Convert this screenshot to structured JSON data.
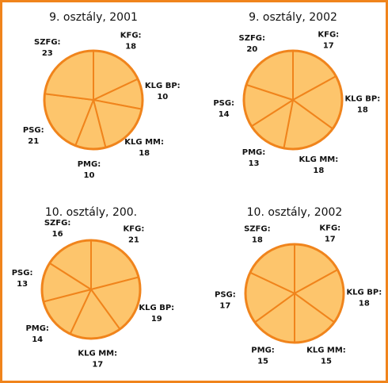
{
  "chart_data": [
    {
      "type": "pie",
      "title": "9. osztály, 2001",
      "categories": [
        "KFG:",
        "KLG BP:",
        "KLG MM:",
        "PMG:",
        "PSG:",
        "SZFG:"
      ],
      "values": [
        18,
        10,
        18,
        10,
        21,
        23
      ],
      "color": "#fdc56c",
      "edge_color": "#f0841c"
    },
    {
      "type": "pie",
      "title": "9. osztály, 2002",
      "categories": [
        "KFG:",
        "KLG BP:",
        "KLG MM:",
        "PMG:",
        "PSG:",
        "SZFG:"
      ],
      "values": [
        17,
        18,
        18,
        13,
        14,
        20
      ],
      "color": "#fdc56c",
      "edge_color": "#f0841c"
    },
    {
      "type": "pie",
      "title": "10. osztály, 200.",
      "categories": [
        "KFG:",
        "KLG BP:",
        "KLG MM:",
        "PMG:",
        "PSG:",
        "SZFG:"
      ],
      "values": [
        21,
        19,
        17,
        14,
        13,
        16
      ],
      "color": "#fdc56c",
      "edge_color": "#f0841c"
    },
    {
      "type": "pie",
      "title": "10. osztály, 2002",
      "categories": [
        "KFG:",
        "KLG BP:",
        "KLG MM:",
        "PMG:",
        "PSG:",
        "SZFG:"
      ],
      "values": [
        17,
        18,
        15,
        15,
        17,
        18
      ],
      "color": "#fdc56c",
      "edge_color": "#f0841c"
    }
  ]
}
